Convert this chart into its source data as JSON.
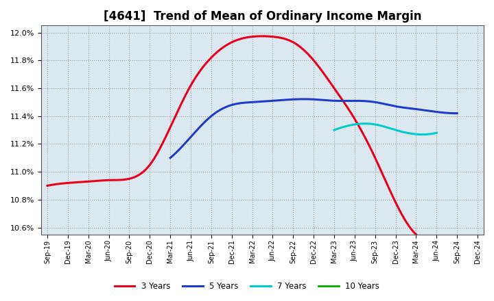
{
  "title": "[4641]  Trend of Mean of Ordinary Income Margin",
  "x_labels": [
    "Sep-19",
    "Dec-19",
    "Mar-20",
    "Jun-20",
    "Sep-20",
    "Dec-20",
    "Mar-21",
    "Jun-21",
    "Sep-21",
    "Dec-21",
    "Mar-22",
    "Jun-22",
    "Sep-22",
    "Dec-22",
    "Mar-23",
    "Jun-23",
    "Sep-23",
    "Dec-23",
    "Mar-24",
    "Jun-24",
    "Sep-24",
    "Dec-24"
  ],
  "y_ticks": [
    10.6,
    10.8,
    11.0,
    11.2,
    11.4,
    11.6,
    11.8,
    12.0
  ],
  "ylim": [
    10.55,
    12.05
  ],
  "y3": [
    10.9,
    10.92,
    10.93,
    10.94,
    10.95,
    11.05,
    11.32,
    11.62,
    11.82,
    11.93,
    11.97,
    11.97,
    11.93,
    11.8,
    11.6,
    11.38,
    11.1,
    10.78,
    10.55,
    null,
    null,
    null
  ],
  "y5": [
    null,
    null,
    null,
    null,
    null,
    null,
    11.1,
    11.25,
    11.4,
    11.48,
    11.5,
    11.51,
    11.52,
    11.52,
    11.51,
    11.51,
    11.5,
    11.47,
    11.45,
    11.43,
    11.42,
    null
  ],
  "y7": [
    null,
    null,
    null,
    null,
    null,
    null,
    null,
    null,
    null,
    null,
    null,
    null,
    null,
    null,
    11.3,
    11.34,
    11.34,
    11.3,
    11.27,
    11.28,
    null,
    null
  ],
  "y10": [
    null,
    null,
    null,
    null,
    null,
    null,
    null,
    null,
    null,
    null,
    null,
    null,
    null,
    null,
    null,
    null,
    null,
    null,
    null,
    null,
    null,
    null
  ],
  "colors": {
    "3 Years": "#e8001c",
    "5 Years": "#1e3ccc",
    "7 Years": "#00cccc",
    "10 Years": "#00aa00"
  },
  "background_color": "#ffffff",
  "plot_bg": "#dce8f0",
  "grid_color": "#aaaaaa",
  "title_fontsize": 12
}
